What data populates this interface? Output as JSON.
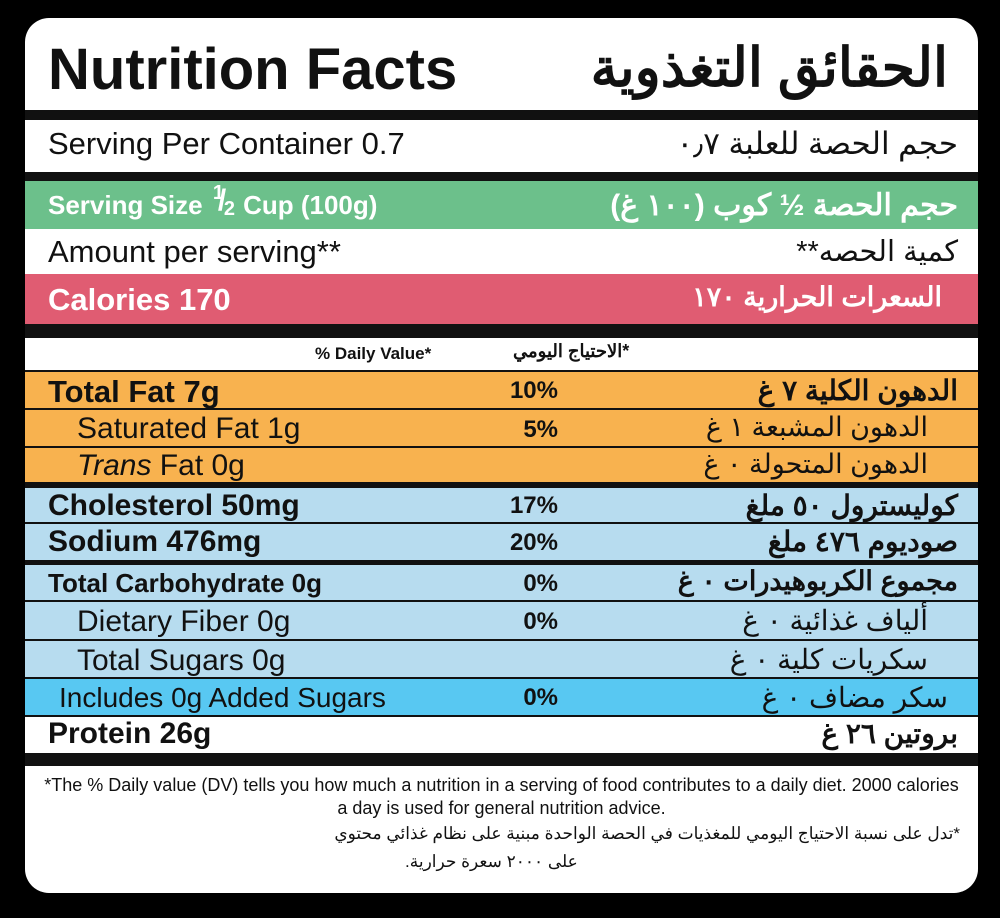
{
  "title": {
    "en": "Nutrition Facts",
    "ar": "الحقائق التغذوية"
  },
  "serving_per_container": {
    "en": "Serving Per Container 0.7",
    "ar": "حجم الحصة للعلبة ٠٫٧"
  },
  "serving_size": {
    "en_prefix": "Serving Size",
    "frac_num": "1",
    "frac_den": "2",
    "en_suffix": "Cup (100g)",
    "ar": "حجم الحصة ½ كوب (١٠٠ غ)"
  },
  "amount_per_serving": {
    "en": "Amount per serving**",
    "ar": "كمية الحصه**"
  },
  "calories": {
    "en": "Calories 170",
    "ar": "السعرات الحرارية ١٧٠"
  },
  "daily_value_header": {
    "en": "% Daily Value*",
    "ar": "*الاحتياج اليومي"
  },
  "nutrients": [
    {
      "en": "Total Fat 7g",
      "pct": "10%",
      "ar": "الدهون الكلية ٧ غ"
    },
    {
      "en": "Saturated Fat 1g",
      "pct": "5%",
      "ar": "الدهون المشبعة ١ غ"
    },
    {
      "en_italic": "Trans",
      "en": " Fat 0g",
      "pct": "",
      "ar": "الدهون المتحولة ٠ غ"
    },
    {
      "en": "Cholesterol 50mg",
      "pct": "17%",
      "ar": "كوليسترول ٥٠ ملغ"
    },
    {
      "en": "Sodium 476mg",
      "pct": "20%",
      "ar": "صوديوم ٤٧٦ ملغ"
    },
    {
      "en": "Total Carbohydrate 0g",
      "pct": "0%",
      "ar": "مجموع الكربوهيدرات ٠ غ"
    },
    {
      "en": "Dietary Fiber 0g",
      "pct": "0%",
      "ar": "ألياف غذائية ٠ غ"
    },
    {
      "en": "Total Sugars 0g",
      "pct": "",
      "ar": "سكريات كلية ٠ غ"
    },
    {
      "en": "Includes 0g Added Sugars",
      "pct": "0%",
      "ar": "سكر مضاف ٠ غ"
    },
    {
      "en": "Protein 26g",
      "pct": "",
      "ar": "بروتين ٢٦ غ"
    }
  ],
  "footnote": {
    "en": "*The % Daily value (DV) tells you how much a nutrition in a serving of food contributes to a daily diet. 2000 calories a day is used for general nutrition advice.",
    "ar_line1": "*تدل على نسبة الاحتياج اليومي للمغذيات في الحصة الواحدة مبنية على نظام غذائي محتوي",
    "ar_line2": "على ٢٠٠٠ سعرة حرارية."
  },
  "colors": {
    "green": "#6cc08b",
    "red": "#e05c72",
    "orange": "#f8b24f",
    "light_blue": "#b7dcef",
    "bright_blue": "#58c8f2"
  }
}
